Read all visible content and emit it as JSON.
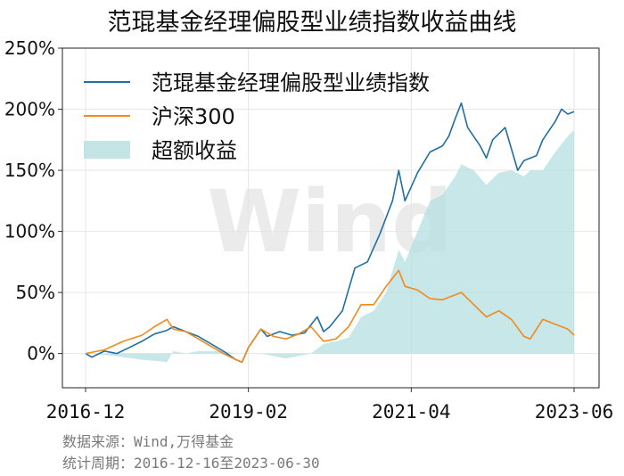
{
  "chart_data": {
    "type": "line",
    "title": "范琨基金经理偏股型业绩指数收益曲线",
    "xlabel": "",
    "ylabel": "",
    "x_tick_labels": [
      "2016-12",
      "2019-02",
      "2021-04",
      "2023-06"
    ],
    "x_range": [
      "2016-12-16",
      "2023-06-30"
    ],
    "y_tick_labels": [
      "0%",
      "50%",
      "100%",
      "150%",
      "200%",
      "250%"
    ],
    "ylim": [
      -28,
      250
    ],
    "y_unit": "%",
    "grid": true,
    "legend_position": "top-left",
    "series": [
      {
        "name": "范琨基金经理偏股型业绩指数",
        "color": "#1f6fa0",
        "points": [
          [
            "2016-12",
            0
          ],
          [
            "2017-01",
            -3
          ],
          [
            "2017-03",
            2
          ],
          [
            "2017-05",
            0
          ],
          [
            "2017-07",
            5
          ],
          [
            "2017-09",
            10
          ],
          [
            "2017-11",
            16
          ],
          [
            "2018-01",
            19
          ],
          [
            "2018-02",
            22
          ],
          [
            "2018-04",
            18
          ],
          [
            "2018-06",
            14
          ],
          [
            "2018-08",
            8
          ],
          [
            "2018-10",
            2
          ],
          [
            "2018-12",
            -5
          ],
          [
            "2019-01",
            -7
          ],
          [
            "2019-02",
            5
          ],
          [
            "2019-04",
            20
          ],
          [
            "2019-05",
            14
          ],
          [
            "2019-07",
            18
          ],
          [
            "2019-09",
            15
          ],
          [
            "2019-11",
            17
          ],
          [
            "2020-01",
            30
          ],
          [
            "2020-02",
            18
          ],
          [
            "2020-03",
            22
          ],
          [
            "2020-05",
            35
          ],
          [
            "2020-07",
            70
          ],
          [
            "2020-09",
            75
          ],
          [
            "2020-11",
            98
          ],
          [
            "2021-01",
            125
          ],
          [
            "2021-02",
            150
          ],
          [
            "2021-03",
            125
          ],
          [
            "2021-05",
            148
          ],
          [
            "2021-07",
            165
          ],
          [
            "2021-09",
            170
          ],
          [
            "2021-10",
            178
          ],
          [
            "2021-11",
            192
          ],
          [
            "2021-12",
            205
          ],
          [
            "2022-01",
            185
          ],
          [
            "2022-03",
            170
          ],
          [
            "2022-04",
            160
          ],
          [
            "2022-05",
            175
          ],
          [
            "2022-07",
            185
          ],
          [
            "2022-09",
            150
          ],
          [
            "2022-10",
            158
          ],
          [
            "2022-12",
            162
          ],
          [
            "2023-01",
            175
          ],
          [
            "2023-03",
            190
          ],
          [
            "2023-04",
            200
          ],
          [
            "2023-05",
            196
          ],
          [
            "2023-06",
            198
          ]
        ]
      },
      {
        "name": "沪深300",
        "color": "#f08a1c",
        "points": [
          [
            "2016-12",
            0
          ],
          [
            "2017-03",
            3
          ],
          [
            "2017-06",
            10
          ],
          [
            "2017-09",
            15
          ],
          [
            "2017-11",
            22
          ],
          [
            "2018-01",
            28
          ],
          [
            "2018-02",
            20
          ],
          [
            "2018-04",
            18
          ],
          [
            "2018-06",
            12
          ],
          [
            "2018-08",
            6
          ],
          [
            "2018-10",
            0
          ],
          [
            "2018-12",
            -5
          ],
          [
            "2019-01",
            -7
          ],
          [
            "2019-02",
            5
          ],
          [
            "2019-04",
            20
          ],
          [
            "2019-06",
            14
          ],
          [
            "2019-08",
            12
          ],
          [
            "2019-10",
            16
          ],
          [
            "2019-12",
            22
          ],
          [
            "2020-02",
            10
          ],
          [
            "2020-04",
            12
          ],
          [
            "2020-06",
            22
          ],
          [
            "2020-08",
            40
          ],
          [
            "2020-10",
            40
          ],
          [
            "2020-12",
            55
          ],
          [
            "2021-02",
            68
          ],
          [
            "2021-03",
            55
          ],
          [
            "2021-05",
            52
          ],
          [
            "2021-07",
            45
          ],
          [
            "2021-09",
            44
          ],
          [
            "2021-11",
            48
          ],
          [
            "2021-12",
            50
          ],
          [
            "2022-02",
            40
          ],
          [
            "2022-04",
            30
          ],
          [
            "2022-06",
            35
          ],
          [
            "2022-08",
            28
          ],
          [
            "2022-10",
            14
          ],
          [
            "2022-11",
            12
          ],
          [
            "2023-01",
            28
          ],
          [
            "2023-03",
            24
          ],
          [
            "2023-05",
            20
          ],
          [
            "2023-06",
            15
          ]
        ]
      }
    ],
    "area_series": {
      "name": "超额收益",
      "color": "#b5dfe0",
      "points": [
        [
          "2016-12",
          0
        ],
        [
          "2017-03",
          -1
        ],
        [
          "2017-06",
          -3
        ],
        [
          "2017-09",
          -5
        ],
        [
          "2017-11",
          -6
        ],
        [
          "2018-01",
          -7
        ],
        [
          "2018-02",
          2
        ],
        [
          "2018-04",
          0
        ],
        [
          "2018-06",
          2
        ],
        [
          "2018-08",
          2
        ],
        [
          "2018-10",
          2
        ],
        [
          "2018-12",
          0
        ],
        [
          "2019-01",
          0
        ],
        [
          "2019-02",
          0
        ],
        [
          "2019-04",
          0
        ],
        [
          "2019-06",
          -2
        ],
        [
          "2019-08",
          -4
        ],
        [
          "2019-10",
          -2
        ],
        [
          "2019-12",
          0
        ],
        [
          "2020-02",
          8
        ],
        [
          "2020-04",
          10
        ],
        [
          "2020-06",
          13
        ],
        [
          "2020-08",
          30
        ],
        [
          "2020-10",
          35
        ],
        [
          "2020-12",
          50
        ],
        [
          "2021-02",
          85
        ],
        [
          "2021-03",
          75
        ],
        [
          "2021-05",
          100
        ],
        [
          "2021-07",
          125
        ],
        [
          "2021-09",
          130
        ],
        [
          "2021-11",
          145
        ],
        [
          "2021-12",
          155
        ],
        [
          "2022-02",
          150
        ],
        [
          "2022-04",
          138
        ],
        [
          "2022-06",
          148
        ],
        [
          "2022-08",
          150
        ],
        [
          "2022-10",
          145
        ],
        [
          "2022-11",
          150
        ],
        [
          "2023-01",
          150
        ],
        [
          "2023-03",
          165
        ],
        [
          "2023-05",
          178
        ],
        [
          "2023-06",
          183
        ]
      ]
    },
    "watermark": "Wind"
  },
  "footer": {
    "source": "数据来源：Wind,万得基金",
    "period": "统计周期：2016-12-16至2023-06-30"
  }
}
